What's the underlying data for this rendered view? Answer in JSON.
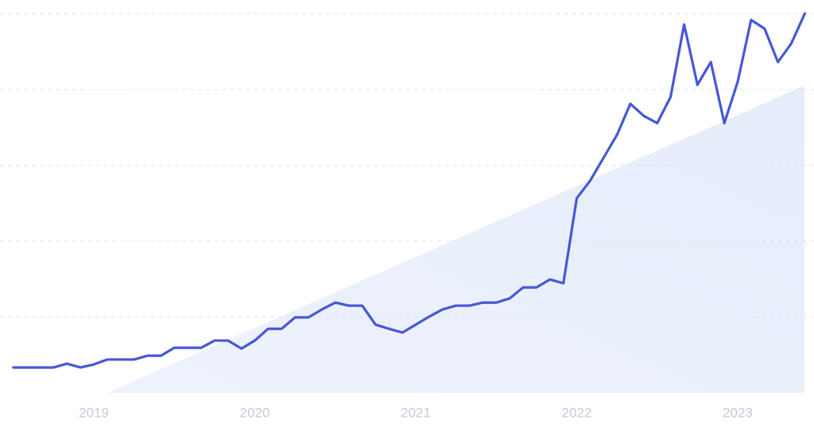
{
  "chart_data": {
    "type": "line",
    "x": [
      2018.5,
      2018.583,
      2018.667,
      2018.75,
      2018.833,
      2018.917,
      2019,
      2019.083,
      2019.167,
      2019.25,
      2019.333,
      2019.417,
      2019.5,
      2019.583,
      2019.667,
      2019.75,
      2019.833,
      2019.917,
      2020,
      2020.083,
      2020.167,
      2020.25,
      2020.333,
      2020.417,
      2020.5,
      2020.583,
      2020.667,
      2020.75,
      2020.833,
      2020.917,
      2021,
      2021.083,
      2021.167,
      2021.25,
      2021.333,
      2021.417,
      2021.5,
      2021.583,
      2021.667,
      2021.75,
      2021.833,
      2021.917,
      2022,
      2022.083,
      2022.167,
      2022.25,
      2022.333,
      2022.417,
      2022.5,
      2022.583,
      2022.667,
      2022.75,
      2022.833,
      2022.917,
      2023,
      2023.083,
      2023.167,
      2023.25,
      2023.333,
      2023.417
    ],
    "values": [
      6.7,
      6.7,
      6.7,
      6.7,
      7.7,
      6.7,
      7.5,
      8.8,
      8.8,
      8.8,
      9.8,
      9.8,
      11.9,
      11.9,
      11.9,
      13.8,
      13.8,
      11.7,
      13.8,
      16.9,
      16.9,
      19.9,
      19.9,
      22.0,
      23.8,
      23.0,
      23.0,
      18.0,
      16.9,
      15.9,
      18.0,
      20.1,
      22.0,
      23.0,
      23.0,
      23.8,
      23.8,
      24.9,
      27.8,
      27.8,
      29.9,
      28.9,
      51.3,
      55.9,
      62.0,
      68.0,
      76.2,
      73.0,
      71.1,
      78.0,
      97.1,
      81.2,
      87.2,
      71.1,
      82.0,
      98.3,
      96.0,
      87.2,
      92.1,
      100
    ],
    "color": "#4757d6",
    "xlim": [
      2018.417,
      2023.474
    ],
    "xticks": [
      2019,
      2020,
      2021,
      2022,
      2023
    ],
    "ylim": [
      0,
      100
    ],
    "yticks": [
      20,
      40,
      60,
      80,
      100
    ],
    "grid": true
  }
}
